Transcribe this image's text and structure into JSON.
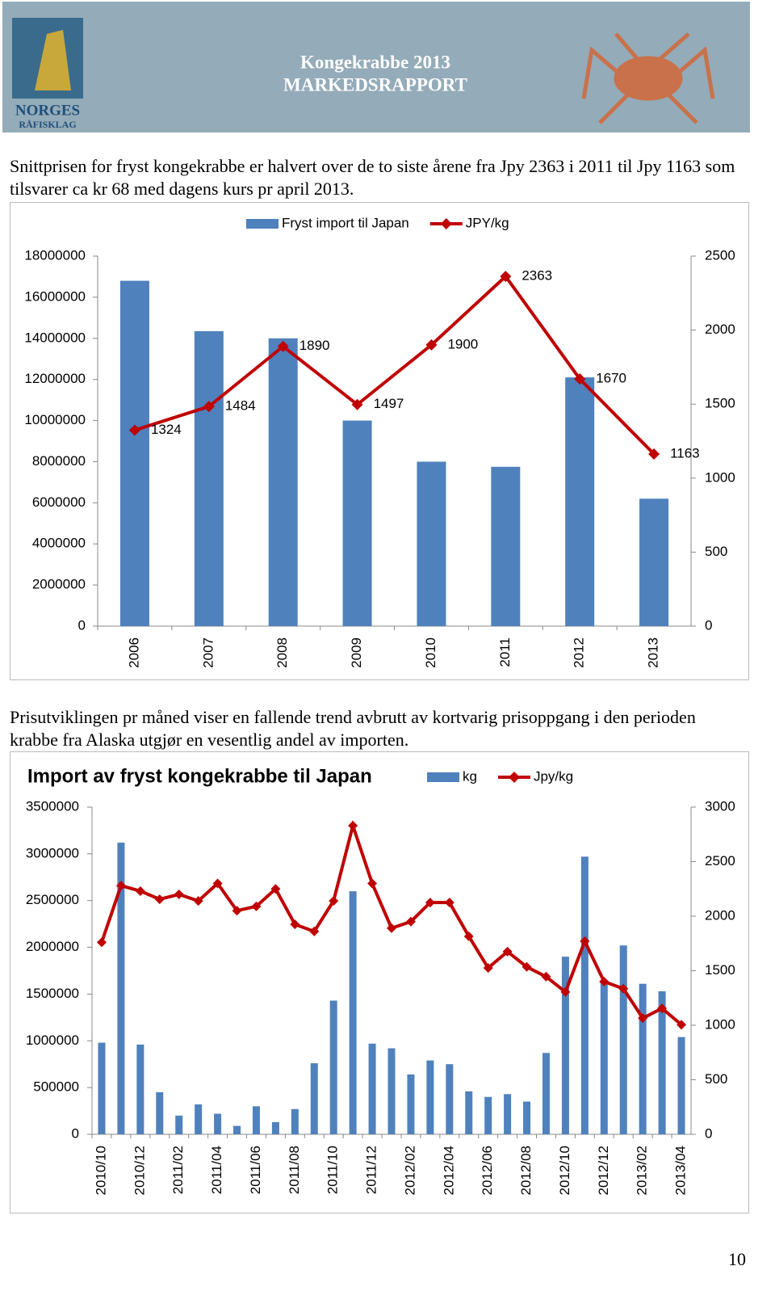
{
  "header": {
    "title": "Kongekrabbe 2013",
    "subtitle": "MARKEDSRAPPORT",
    "logo_line1": "NORGES",
    "logo_line2": "RÅFISKLAG"
  },
  "paragraphs": [
    "Snittprisen for fryst kongekrabbe er halvert over de to siste årene fra Jpy 2363 i 2011 til Jpy 1163 som tilsvarer ca kr 68 med dagens kurs pr april 2013.",
    "Prisutviklingen pr måned viser en fallende trend avbrutt av kortvarig prisoppgang i den perioden krabbe fra Alaska utgjør en vesentlig andel av importen."
  ],
  "chart_data": [
    {
      "type": "combo",
      "legend": "top",
      "grid": false,
      "categories": [
        "2006",
        "2007",
        "2008",
        "2009",
        "2010",
        "2011",
        "2012",
        "2013"
      ],
      "series": [
        {
          "name": "Fryst import til Japan",
          "type": "bar",
          "color": "#4f81bd",
          "values": [
            16800000,
            14350000,
            14000000,
            10000000,
            8000000,
            7750000,
            12100000,
            6200000
          ]
        },
        {
          "name": "JPY/kg",
          "type": "line",
          "axis": "y2",
          "color": "#c00000",
          "data_labels": true,
          "values": [
            1324,
            1484,
            1890,
            1497,
            1900,
            2363,
            1670,
            1163
          ]
        }
      ],
      "ylim": [
        0,
        18000000
      ],
      "yticks": [
        0,
        2000000,
        4000000,
        6000000,
        8000000,
        10000000,
        12000000,
        14000000,
        16000000,
        18000000
      ],
      "y2lim": [
        0,
        2500
      ],
      "y2ticks": [
        0,
        500,
        1000,
        1500,
        2000,
        2500
      ]
    },
    {
      "type": "combo",
      "title": "Import av fryst kongekrabbe til Japan",
      "legend": "top",
      "grid": false,
      "categories": [
        "2010/10",
        null,
        "2010/12",
        null,
        "2011/02",
        null,
        "2011/04",
        null,
        "2011/06",
        null,
        "2011/08",
        null,
        "2011/10",
        null,
        "2011/12",
        null,
        "2012/02",
        null,
        "2012/04",
        null,
        "2012/06",
        null,
        "2012/08",
        null,
        "2012/10",
        null,
        "2012/12",
        null,
        "2013/02",
        null,
        "2013/04"
      ],
      "series": [
        {
          "name": "kg",
          "type": "bar",
          "color": "#4f81bd",
          "values": [
            980000,
            3120000,
            960000,
            450000,
            200000,
            320000,
            220000,
            90000,
            300000,
            130000,
            270000,
            760000,
            1430000,
            2600000,
            970000,
            920000,
            640000,
            790000,
            750000,
            460000,
            400000,
            430000,
            350000,
            870000,
            1900000,
            2970000,
            1650000,
            2020000,
            1610000,
            1530000,
            1040000
          ]
        },
        {
          "name": "Jpy/kg",
          "type": "line",
          "axis": "y2",
          "color": "#c00000",
          "values": [
            1760,
            2280,
            2230,
            2155,
            2200,
            2140,
            2300,
            2050,
            2090,
            2250,
            1925,
            1860,
            2140,
            2830,
            2300,
            1890,
            1950,
            2125,
            2125,
            1815,
            1525,
            1675,
            1535,
            1445,
            1305,
            1770,
            1400,
            1335,
            1065,
            1155,
            1005
          ]
        }
      ],
      "ylim": [
        0,
        3500000
      ],
      "yticks": [
        0,
        500000,
        1000000,
        1500000,
        2000000,
        2500000,
        3000000,
        3500000
      ],
      "y2lim": [
        0,
        3000
      ],
      "y2ticks": [
        0,
        500,
        1000,
        1500,
        2000,
        2500,
        3000
      ]
    }
  ],
  "page_number": "10"
}
